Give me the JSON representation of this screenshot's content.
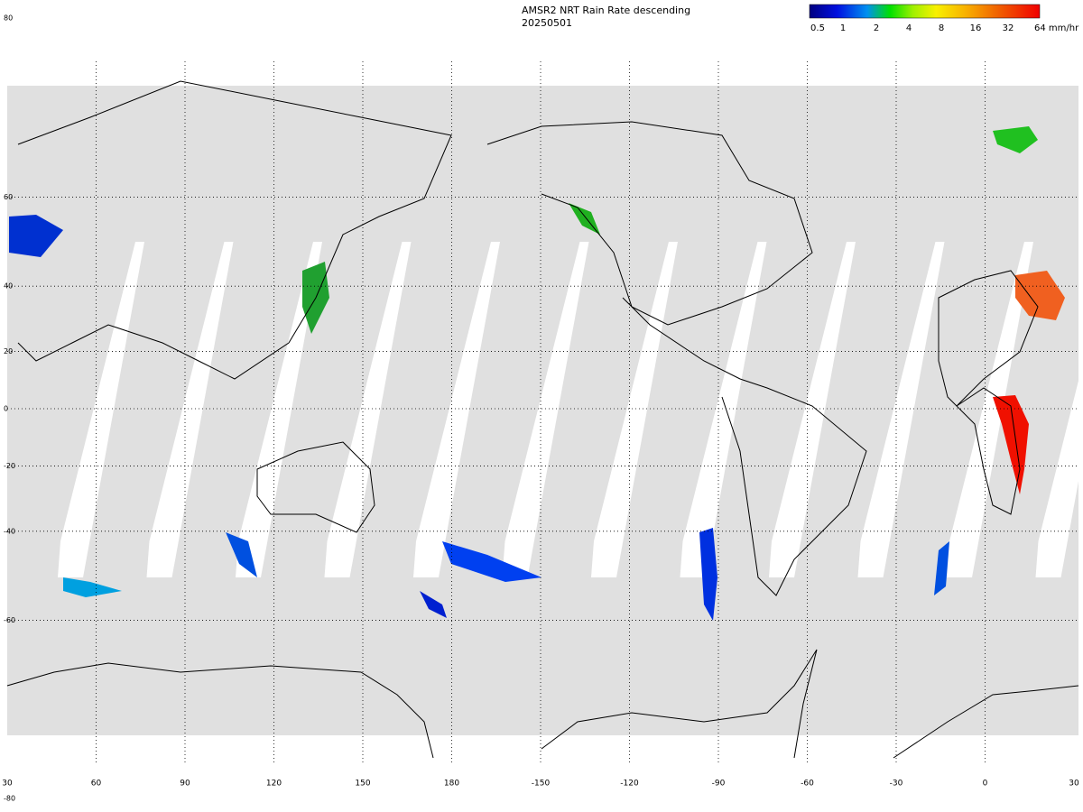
{
  "header": {
    "title": "AMSR2 NRT Rain Rate descending",
    "date": "20250501"
  },
  "colorbar": {
    "labels": [
      "0.5",
      "1",
      "2",
      "4",
      "8",
      "16",
      "32",
      "64 mm/hr"
    ]
  },
  "axes": {
    "lat_labels": [
      "80",
      "60",
      "40",
      "20",
      "0",
      "-20",
      "-40",
      "-60",
      "-80"
    ],
    "lon_labels": [
      "30",
      "60",
      "90",
      "120",
      "150",
      "180",
      "-150",
      "-120",
      "-90",
      "-60",
      "-30",
      "0",
      "30"
    ]
  }
}
